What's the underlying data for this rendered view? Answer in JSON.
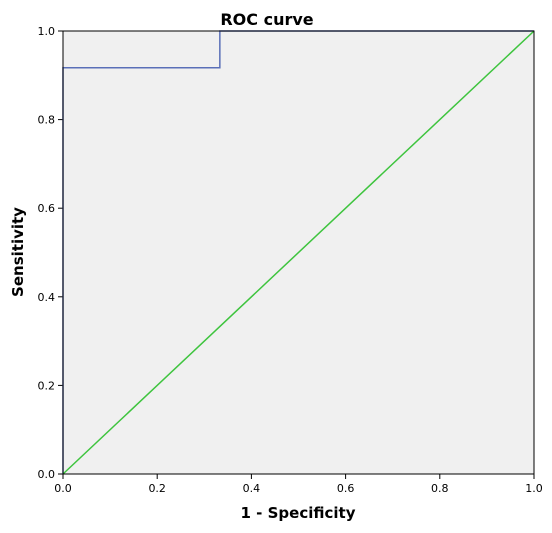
{
  "chart_data": {
    "type": "line",
    "title": "ROC curve",
    "xlabel": "1 - Specificity",
    "ylabel": "Sensitivity",
    "xlim": [
      0,
      1
    ],
    "ylim": [
      0,
      1
    ],
    "xticks": [
      "0.0",
      "0.2",
      "0.4",
      "0.6",
      "0.8",
      "1.0"
    ],
    "yticks": [
      "0.0",
      "0.2",
      "0.4",
      "0.6",
      "0.8",
      "1.0"
    ],
    "grid": false,
    "legend": "none",
    "series": [
      {
        "color": "#5a6fb8",
        "style": "step",
        "points": [
          [
            0.0,
            0.0
          ],
          [
            0.0,
            0.917
          ],
          [
            0.333,
            0.917
          ],
          [
            0.333,
            1.0
          ],
          [
            1.0,
            1.0
          ]
        ]
      },
      {
        "color": "#3ec43e",
        "style": "diagonal",
        "points": [
          [
            0.0,
            0.0
          ],
          [
            1.0,
            1.0
          ]
        ]
      }
    ],
    "colors": {
      "plot_background": "#f0f0f0",
      "frame": "#000000"
    }
  }
}
